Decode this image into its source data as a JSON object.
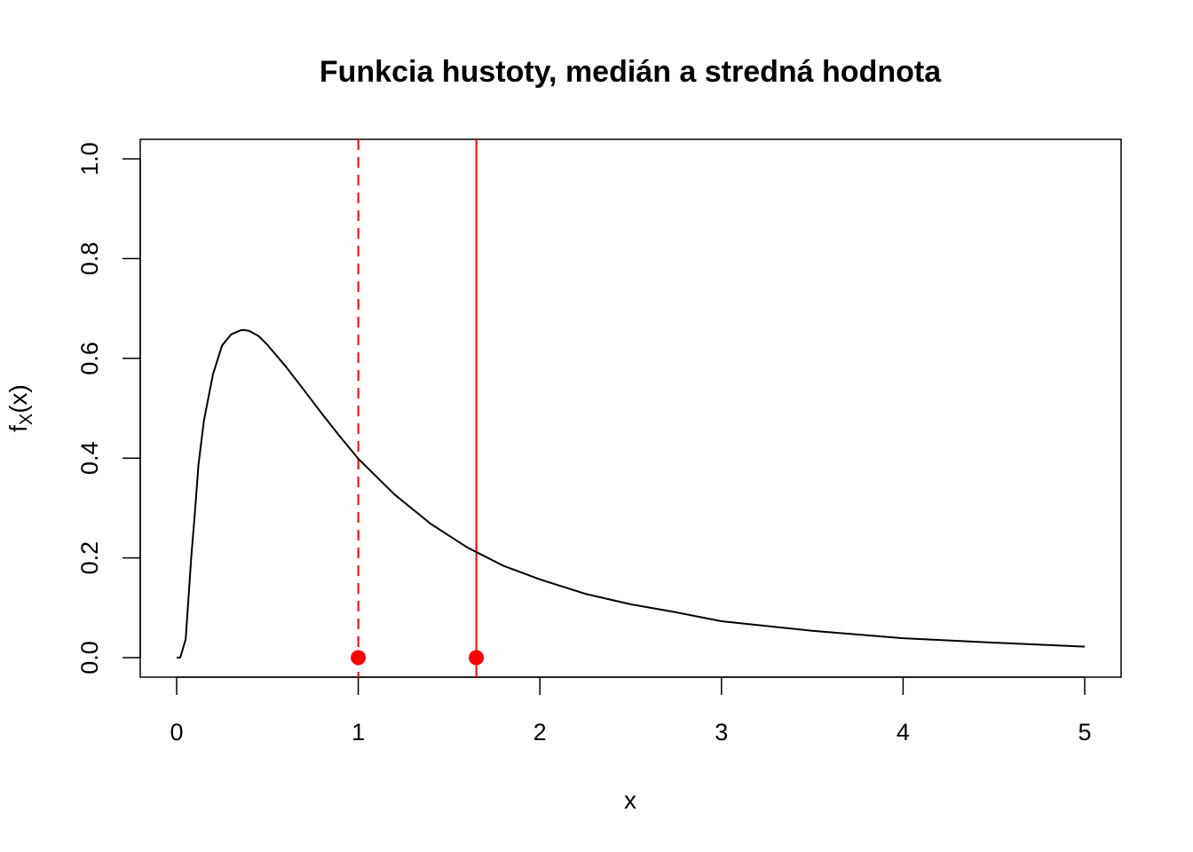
{
  "chart_data": {
    "type": "line",
    "title": "Funkcia hustoty, medián a stredná hodnota",
    "xlabel": "x",
    "ylabel": {
      "main": "f",
      "subscript": "X",
      "suffix": "(x)"
    },
    "xlim": [
      0,
      5
    ],
    "ylim": [
      0,
      1
    ],
    "x_ticks": [
      0,
      1,
      2,
      3,
      4,
      5
    ],
    "y_ticks": [
      0.0,
      0.2,
      0.4,
      0.6,
      0.8,
      1.0
    ],
    "x_tick_labels": [
      "0",
      "1",
      "2",
      "3",
      "4",
      "5"
    ],
    "y_tick_labels": [
      "0.0",
      "0.2",
      "0.4",
      "0.6",
      "0.8",
      "1.0"
    ],
    "grid": false,
    "legend": "none",
    "series": [
      {
        "color": "#000000",
        "style": "solid",
        "points": [
          [
            0.0,
            0.0
          ],
          [
            0.02,
            0.0001
          ],
          [
            0.05,
            0.037
          ],
          [
            0.08,
            0.2
          ],
          [
            0.1,
            0.289
          ],
          [
            0.12,
            0.387
          ],
          [
            0.15,
            0.475
          ],
          [
            0.2,
            0.568
          ],
          [
            0.25,
            0.626
          ],
          [
            0.3,
            0.648
          ],
          [
            0.35,
            0.656
          ],
          [
            0.37,
            0.657
          ],
          [
            0.4,
            0.655
          ],
          [
            0.45,
            0.645
          ],
          [
            0.5,
            0.627
          ],
          [
            0.6,
            0.584
          ],
          [
            0.7,
            0.537
          ],
          [
            0.8,
            0.489
          ],
          [
            0.9,
            0.443
          ],
          [
            1.0,
            0.399
          ],
          [
            1.2,
            0.327
          ],
          [
            1.4,
            0.268
          ],
          [
            1.6,
            0.221
          ],
          [
            1.8,
            0.184
          ],
          [
            2.0,
            0.157
          ],
          [
            2.25,
            0.128
          ],
          [
            2.5,
            0.107
          ],
          [
            2.75,
            0.091
          ],
          [
            3.0,
            0.073
          ],
          [
            3.5,
            0.054
          ],
          [
            4.0,
            0.039
          ],
          [
            4.5,
            0.03
          ],
          [
            5.0,
            0.022
          ]
        ]
      }
    ],
    "vertical_lines": [
      {
        "name": "median",
        "x": 1.0,
        "color": "#ff0000",
        "style": "dashed"
      },
      {
        "name": "mean",
        "x": 1.65,
        "color": "#ff0000",
        "style": "solid"
      }
    ],
    "markers": [
      {
        "x": 1.0,
        "y": 0.0,
        "color": "#ff0000"
      },
      {
        "x": 1.65,
        "y": 0.0,
        "color": "#ff0000"
      }
    ]
  }
}
